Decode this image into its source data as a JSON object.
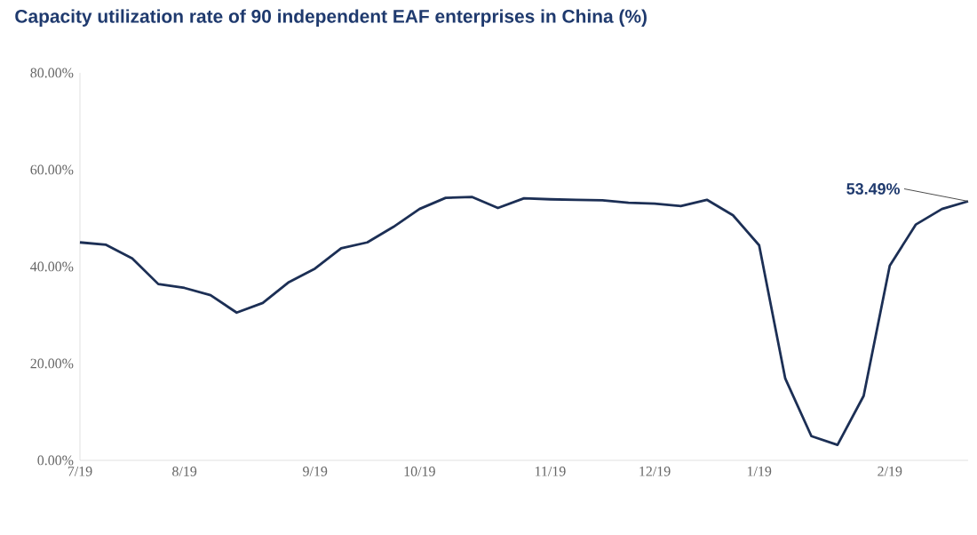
{
  "chart_data": {
    "type": "line",
    "title": "Capacity utilization rate of 90 independent EAF enterprises in China (%)",
    "categories": [
      "7/19",
      null,
      null,
      null,
      "8/19",
      null,
      null,
      null,
      null,
      "9/19",
      null,
      null,
      null,
      "10/19",
      null,
      null,
      null,
      null,
      "11/19",
      null,
      null,
      null,
      "12/19",
      null,
      null,
      null,
      "1/19",
      null,
      null,
      null,
      null,
      "2/19",
      null,
      null,
      null
    ],
    "values": [
      45.0,
      44.5,
      41.7,
      36.4,
      35.6,
      34.1,
      30.5,
      32.5,
      36.8,
      39.6,
      43.8,
      45.0,
      48.2,
      51.9,
      54.2,
      54.4,
      52.1,
      54.1,
      53.9,
      53.8,
      53.7,
      53.2,
      53.0,
      52.5,
      53.8,
      50.6,
      44.4,
      16.9,
      5.0,
      3.2,
      13.3,
      40.2,
      48.7,
      51.9,
      53.49
    ],
    "color": "#1c2f55",
    "ylim": [
      0,
      80
    ],
    "yticks": [
      {
        "value": 0,
        "label": "0.00%"
      },
      {
        "value": 20,
        "label": "20.00%"
      },
      {
        "value": 40,
        "label": "40.00%"
      },
      {
        "value": 60,
        "label": "60.00%"
      },
      {
        "value": 80,
        "label": "80.00%"
      }
    ],
    "value_labels": [
      null,
      null,
      null,
      null,
      null,
      null,
      null,
      null,
      null,
      null,
      null,
      null,
      null,
      null,
      null,
      null,
      null,
      null,
      null,
      null,
      null,
      null,
      null,
      null,
      null,
      null,
      null,
      null,
      null,
      null,
      null,
      null,
      null,
      null,
      "53.49%"
    ]
  }
}
